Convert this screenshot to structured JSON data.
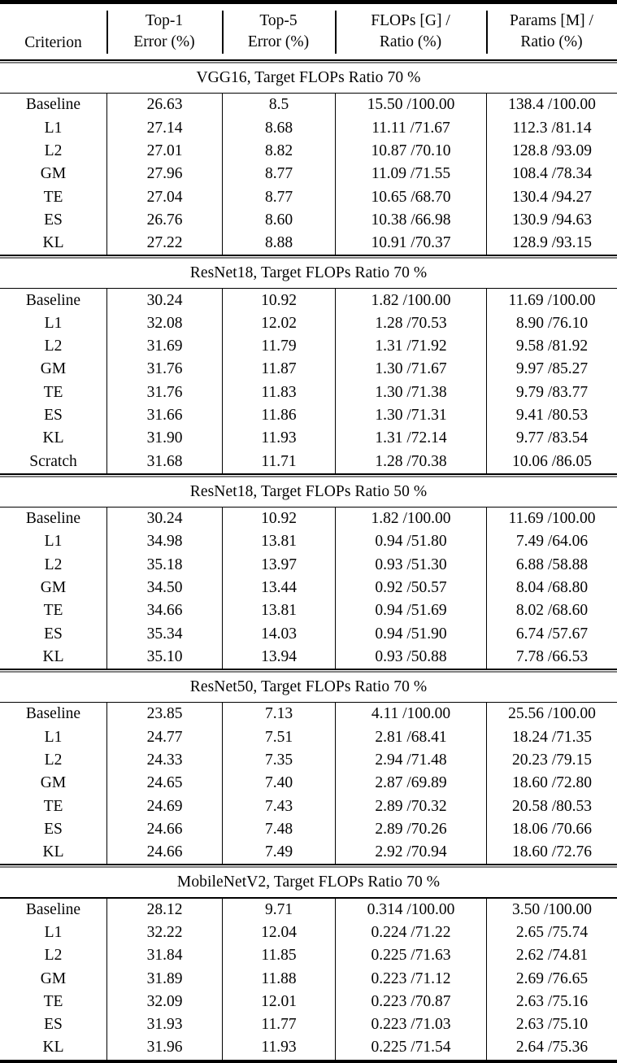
{
  "page": {
    "background_color": "#ffffff",
    "text_color": "#050505",
    "rule_color": "#000000"
  },
  "table": {
    "header": {
      "criterion": "Criterion",
      "columns": [
        {
          "line1": "Top-1",
          "line2": "Error (%)"
        },
        {
          "line1": "Top-5",
          "line2": "Error (%)"
        },
        {
          "line1": "FLOPs [G] /",
          "line2": "Ratio (%)"
        },
        {
          "line1": "Params [M] /",
          "line2": "Ratio (%)"
        }
      ]
    },
    "sections": [
      {
        "title": "VGG16, Target FLOPs Ratio 70 %",
        "rows": [
          [
            "Baseline",
            "26.63",
            "8.5",
            "15.50 /100.00",
            "138.4 /100.00"
          ],
          [
            "L1",
            "27.14",
            "8.68",
            "11.11 /71.67",
            "112.3 /81.14"
          ],
          [
            "L2",
            "27.01",
            "8.82",
            "10.87 /70.10",
            "128.8 /93.09"
          ],
          [
            "GM",
            "27.96",
            "8.77",
            "11.09 /71.55",
            "108.4 /78.34"
          ],
          [
            "TE",
            "27.04",
            "8.77",
            "10.65 /68.70",
            "130.4 /94.27"
          ],
          [
            "ES",
            "26.76",
            "8.60",
            "10.38 /66.98",
            "130.9 /94.63"
          ],
          [
            "KL",
            "27.22",
            "8.88",
            "10.91 /70.37",
            "128.9 /93.15"
          ]
        ]
      },
      {
        "title": "ResNet18, Target FLOPs Ratio 70 %",
        "rows": [
          [
            "Baseline",
            "30.24",
            "10.92",
            "1.82 /100.00",
            "11.69 /100.00"
          ],
          [
            "L1",
            "32.08",
            "12.02",
            "1.28 /70.53",
            "8.90 /76.10"
          ],
          [
            "L2",
            "31.69",
            "11.79",
            "1.31 /71.92",
            "9.58 /81.92"
          ],
          [
            "GM",
            "31.76",
            "11.87",
            "1.30 /71.67",
            "9.97 /85.27"
          ],
          [
            "TE",
            "31.76",
            "11.83",
            "1.30 /71.38",
            "9.79 /83.77"
          ],
          [
            "ES",
            "31.66",
            "11.86",
            "1.30 /71.31",
            "9.41 /80.53"
          ],
          [
            "KL",
            "31.90",
            "11.93",
            "1.31 /72.14",
            "9.77 /83.54"
          ],
          [
            "Scratch",
            "31.68",
            "11.71",
            "1.28 /70.38",
            "10.06 /86.05"
          ]
        ]
      },
      {
        "title": "ResNet18, Target FLOPs Ratio 50 %",
        "rows": [
          [
            "Baseline",
            "30.24",
            "10.92",
            "1.82 /100.00",
            "11.69 /100.00"
          ],
          [
            "L1",
            "34.98",
            "13.81",
            "0.94 /51.80",
            "7.49 /64.06"
          ],
          [
            "L2",
            "35.18",
            "13.97",
            "0.93 /51.30",
            "6.88 /58.88"
          ],
          [
            "GM",
            "34.50",
            "13.44",
            "0.92 /50.57",
            "8.04 /68.80"
          ],
          [
            "TE",
            "34.66",
            "13.81",
            "0.94 /51.69",
            "8.02 /68.60"
          ],
          [
            "ES",
            "35.34",
            "14.03",
            "0.94 /51.90",
            "6.74 /57.67"
          ],
          [
            "KL",
            "35.10",
            "13.94",
            "0.93 /50.88",
            "7.78 /66.53"
          ]
        ]
      },
      {
        "title": "ResNet50, Target FLOPs Ratio 70 %",
        "rows": [
          [
            "Baseline",
            "23.85",
            "7.13",
            "4.11 /100.00",
            "25.56 /100.00"
          ],
          [
            "L1",
            "24.77",
            "7.51",
            "2.81 /68.41",
            "18.24 /71.35"
          ],
          [
            "L2",
            "24.33",
            "7.35",
            "2.94 /71.48",
            "20.23 /79.15"
          ],
          [
            "GM",
            "24.65",
            "7.40",
            "2.87 /69.89",
            "18.60 /72.80"
          ],
          [
            "TE",
            "24.69",
            "7.43",
            "2.89 /70.32",
            "20.58 /80.53"
          ],
          [
            "ES",
            "24.66",
            "7.48",
            "2.89 /70.26",
            "18.06 /70.66"
          ],
          [
            "KL",
            "24.66",
            "7.49",
            "2.92 /70.94",
            "18.60 /72.76"
          ]
        ]
      },
      {
        "title": "MobileNetV2, Target FLOPs Ratio 70 %",
        "rows": [
          [
            "Baseline",
            "28.12",
            "9.71",
            "0.314 /100.00",
            "3.50 /100.00"
          ],
          [
            "L1",
            "32.22",
            "12.04",
            "0.224 /71.22",
            "2.65 /75.74"
          ],
          [
            "L2",
            "31.84",
            "11.85",
            "0.225 /71.63",
            "2.62 /74.81"
          ],
          [
            "GM",
            "31.89",
            "11.88",
            "0.223 /71.12",
            "2.69 /76.65"
          ],
          [
            "TE",
            "32.09",
            "12.01",
            "0.223 /70.87",
            "2.63 /75.16"
          ],
          [
            "ES",
            "31.93",
            "11.77",
            "0.223 /71.03",
            "2.63 /75.10"
          ],
          [
            "KL",
            "31.96",
            "11.93",
            "0.225 /71.54",
            "2.64 /75.36"
          ]
        ]
      }
    ]
  }
}
